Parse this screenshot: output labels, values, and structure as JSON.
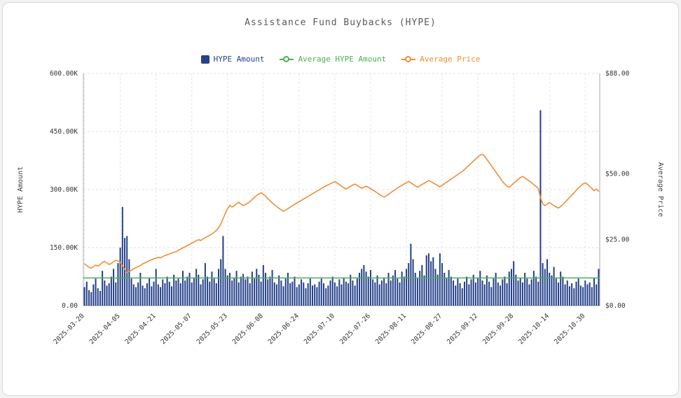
{
  "legend": {
    "items": [
      {
        "label": "HYPE Amount",
        "color": "#26428b",
        "type": "bar"
      },
      {
        "label": "Average HYPE Amount",
        "color": "#4caf50",
        "type": "line"
      },
      {
        "label": "Average Price",
        "color": "#ef8e35",
        "type": "line"
      }
    ]
  },
  "chart_data": {
    "type": "bar",
    "title": "Assistance Fund Buybacks (HYPE)",
    "x_start_date": "2025-03-20",
    "x_interval": "daily",
    "x_tick_labels": [
      "2025-03-20",
      "2025-04-05",
      "2025-04-21",
      "2025-05-07",
      "2025-05-23",
      "2025-06-08",
      "2025-06-24",
      "2025-07-10",
      "2025-07-26",
      "2025-08-11",
      "2025-08-27",
      "2025-09-12",
      "2025-09-28",
      "2025-10-14",
      "2025-10-30"
    ],
    "left_axis": {
      "label": "HYPE Amount",
      "ticks": [
        "0.00",
        "150.00K",
        "300.00K",
        "450.00K",
        "600.00K"
      ],
      "tick_values": [
        0,
        150000,
        300000,
        450000,
        600000
      ],
      "max": 600000
    },
    "right_axis": {
      "label": "Average Price",
      "ticks": [
        "$0.00",
        "$25.00",
        "$50.00",
        "$88.00"
      ],
      "tick_values": [
        0,
        25,
        50,
        88
      ],
      "max": 88
    },
    "series": [
      {
        "name": "HYPE Amount",
        "type": "bar",
        "axis": "left",
        "color": "#26428b",
        "values": [
          48000,
          62000,
          40000,
          35000,
          55000,
          70000,
          45000,
          38000,
          90000,
          65000,
          52000,
          58000,
          75000,
          95000,
          60000,
          110000,
          150000,
          255000,
          175000,
          180000,
          120000,
          70000,
          55000,
          48000,
          60000,
          85000,
          52000,
          45000,
          58000,
          72000,
          50000,
          62000,
          95000,
          55000,
          48000,
          68000,
          58000,
          75000,
          62000,
          50000,
          80000,
          65000,
          70000,
          58000,
          90000,
          65000,
          75000,
          85000,
          60000,
          72000,
          95000,
          80000,
          55000,
          68000,
          110000,
          75000,
          62000,
          88000,
          70000,
          58000,
          95000,
          120000,
          180000,
          95000,
          78000,
          85000,
          65000,
          72000,
          90000,
          60000,
          75000,
          82000,
          68000,
          75000,
          58000,
          88000,
          70000,
          95000,
          80000,
          62000,
          105000,
          85000,
          68000,
          75000,
          92000,
          60000,
          55000,
          78000,
          65000,
          50000,
          70000,
          85000,
          58000,
          62000,
          75000,
          48000,
          55000,
          68000,
          60000,
          45000,
          58000,
          70000,
          52000,
          55000,
          48000,
          62000,
          70000,
          58000,
          45000,
          52000,
          65000,
          75000,
          60000,
          50000,
          68000,
          55000,
          72000,
          62000,
          58000,
          80000,
          65000,
          52000,
          70000,
          85000,
          95000,
          105000,
          88000,
          75000,
          92000,
          68000,
          60000,
          78000,
          55000,
          65000,
          72000,
          58000,
          85000,
          65000,
          78000,
          92000,
          70000,
          60000,
          88000,
          75000,
          95000,
          110000,
          160000,
          120000,
          85000,
          70000,
          90000,
          105000,
          78000,
          130000,
          135000,
          115000,
          125000,
          95000,
          80000,
          135000,
          110000,
          85000,
          70000,
          92000,
          75000,
          65000,
          52000,
          70000,
          58000,
          45000,
          62000,
          75000,
          55000,
          68000,
          80000,
          60000,
          72000,
          90000,
          65000,
          55000,
          78000,
          62000,
          48000,
          70000,
          85000,
          60000,
          52000,
          68000,
          75000,
          58000,
          88000,
          95000,
          115000,
          80000,
          65000,
          72000,
          60000,
          85000,
          70000,
          55000,
          68000,
          90000,
          75000,
          62000,
          505000,
          110000,
          95000,
          120000,
          85000,
          78000,
          100000,
          70000,
          60000,
          88000,
          75000,
          55000,
          65000,
          50000,
          58000,
          45000,
          62000,
          70000,
          52000,
          48000,
          65000,
          55000,
          60000,
          48000,
          72000,
          55000,
          95000
        ]
      },
      {
        "name": "Average HYPE Amount",
        "type": "line",
        "axis": "left",
        "color": "#4caf50",
        "constant_value": 71500
      },
      {
        "name": "Average Price",
        "type": "line",
        "axis": "right",
        "color": "#ef8e35",
        "values": [
          15.8,
          15.2,
          14.6,
          14.2,
          14.8,
          15.4,
          15.0,
          15.6,
          16.4,
          16.8,
          16.2,
          15.6,
          16.0,
          16.6,
          17.2,
          17.0,
          16.4,
          15.2,
          13.8,
          12.6,
          13.0,
          13.4,
          14.0,
          14.4,
          14.8,
          15.2,
          15.8,
          16.2,
          16.6,
          17.0,
          17.4,
          17.8,
          18.0,
          18.3,
          18.1,
          18.6,
          19.0,
          19.3,
          19.6,
          19.9,
          20.2,
          20.5,
          21.0,
          21.4,
          21.9,
          22.3,
          22.8,
          23.2,
          23.7,
          24.1,
          24.6,
          25.0,
          24.7,
          25.3,
          25.8,
          26.2,
          26.7,
          27.2,
          27.8,
          28.5,
          29.5,
          31.0,
          33.0,
          35.0,
          36.8,
          38.0,
          37.4,
          37.9,
          38.6,
          39.2,
          38.5,
          37.9,
          38.3,
          38.8,
          39.4,
          40.2,
          41.0,
          41.8,
          42.3,
          42.8,
          42.2,
          41.5,
          40.6,
          39.8,
          38.9,
          38.2,
          37.6,
          36.9,
          36.3,
          35.8,
          36.2,
          36.8,
          37.3,
          37.9,
          38.4,
          38.9,
          39.4,
          39.9,
          40.4,
          40.9,
          41.4,
          41.9,
          42.4,
          42.9,
          43.4,
          43.9,
          44.4,
          44.9,
          45.4,
          45.8,
          46.2,
          46.6,
          47.0,
          46.5,
          45.9,
          45.3,
          44.7,
          44.2,
          44.7,
          45.2,
          45.7,
          46.1,
          45.6,
          45.0,
          44.5,
          44.9,
          45.3,
          44.8,
          44.3,
          43.8,
          43.3,
          42.7,
          42.1,
          41.6,
          41.2,
          41.6,
          42.2,
          42.8,
          43.4,
          44.0,
          44.6,
          45.1,
          45.6,
          46.1,
          46.6,
          47.1,
          46.6,
          46.0,
          45.4,
          44.9,
          45.4,
          45.9,
          46.4,
          46.9,
          47.4,
          47.0,
          46.5,
          46.0,
          45.5,
          45.0,
          45.6,
          46.2,
          46.8,
          47.4,
          48.0,
          48.5,
          49.1,
          49.7,
          50.3,
          50.9,
          51.6,
          52.4,
          53.2,
          54.0,
          54.8,
          55.6,
          56.4,
          57.0,
          57.4,
          56.6,
          55.5,
          54.3,
          53.1,
          51.9,
          50.7,
          49.5,
          48.3,
          47.1,
          46.1,
          45.3,
          44.9,
          45.6,
          46.4,
          47.2,
          47.9,
          48.5,
          49.0,
          48.4,
          47.8,
          47.2,
          46.6,
          45.9,
          45.2,
          44.4,
          41.0,
          38.6,
          37.9,
          38.5,
          39.1,
          38.5,
          37.9,
          37.4,
          37.0,
          37.6,
          38.3,
          39.2,
          40.1,
          41.0,
          41.9,
          42.8,
          43.7,
          44.6,
          45.4,
          46.1,
          46.6,
          46.0,
          45.2,
          44.4,
          43.6,
          44.2,
          43.4
        ]
      }
    ]
  }
}
